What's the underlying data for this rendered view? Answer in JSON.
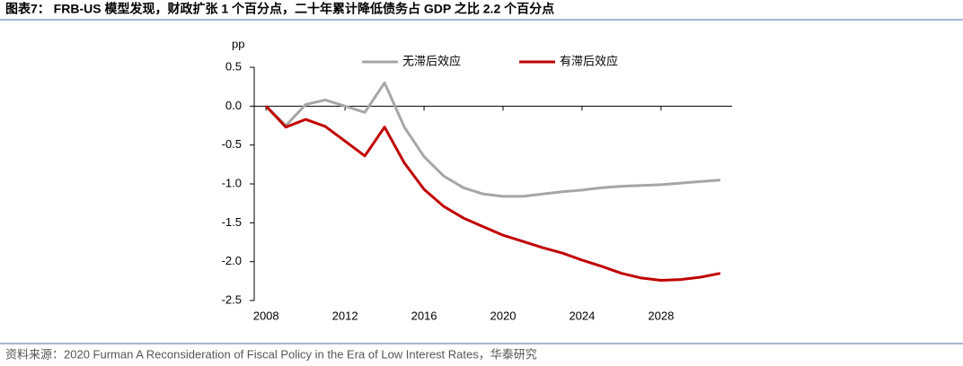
{
  "title": "图表7： FRB-US 模型发现，财政扩张 1 个百分点，二十年累计降低债务占 GDP 之比 2.2 个百分点",
  "source": "资料来源：2020 Furman A Reconsideration of Fiscal Policy in the Era of Low Interest Rates，华泰研究",
  "chart_data": {
    "type": "line",
    "y_label": "pp",
    "x": [
      2008,
      2009,
      2010,
      2011,
      2012,
      2013,
      2014,
      2015,
      2016,
      2017,
      2018,
      2019,
      2020,
      2021,
      2022,
      2023,
      2024,
      2025,
      2026,
      2027,
      2028,
      2029,
      2030,
      2031
    ],
    "series": [
      {
        "name": "无滞后效应",
        "color": "#a6a6a6",
        "values": [
          0,
          -0.25,
          0.02,
          0.08,
          0.0,
          -0.08,
          0.3,
          -0.27,
          -0.65,
          -0.9,
          -1.05,
          -1.13,
          -1.16,
          -1.16,
          -1.13,
          -1.1,
          -1.08,
          -1.05,
          -1.03,
          -1.02,
          -1.01,
          -0.99,
          -0.97,
          -0.95
        ]
      },
      {
        "name": "有滞后效应",
        "color": "#c00000",
        "values": [
          0,
          -0.27,
          -0.17,
          -0.26,
          -0.45,
          -0.64,
          -0.27,
          -0.73,
          -1.07,
          -1.29,
          -1.44,
          -1.55,
          -1.66,
          -1.74,
          -1.82,
          -1.89,
          -1.98,
          -2.06,
          -2.15,
          -2.21,
          -2.24,
          -2.23,
          -2.2,
          -2.15
        ]
      }
    ],
    "xlim": [
      2007.4,
      2031.6
    ],
    "xticks": [
      2008,
      2012,
      2016,
      2020,
      2024,
      2028
    ],
    "ylim": [
      -2.5,
      0.5
    ],
    "yticks": [
      0.5,
      {
        "value": 0,
        "label": "0.0"
      },
      -0.5,
      {
        "value": -1,
        "label": "-1.0"
      },
      -1.5,
      {
        "value": -2,
        "label": "-2.0"
      },
      -2.5
    ],
    "grid": false,
    "legend": "top"
  }
}
